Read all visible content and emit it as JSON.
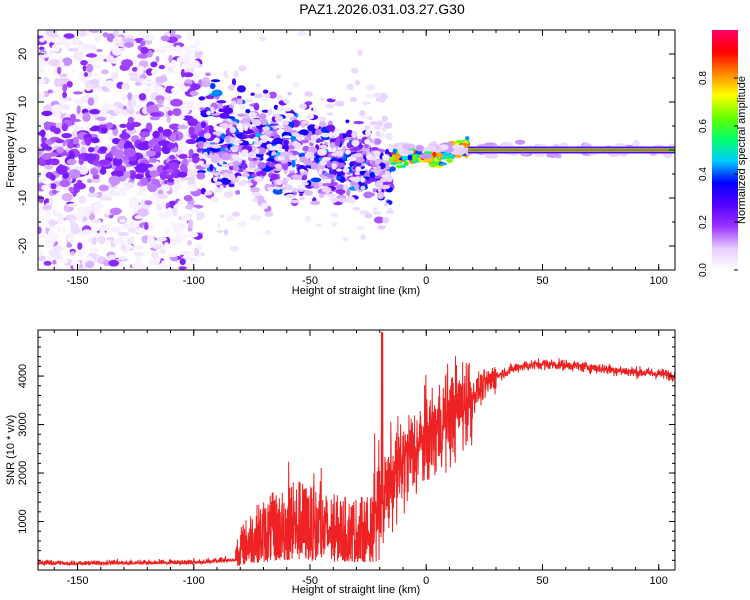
{
  "title": "PAZ1.2026.031.03.27.G30",
  "chart_data": [
    {
      "type": "heatmap",
      "name": "spectrogram",
      "xlabel": "Height of straight line (km)",
      "ylabel": "Frequency (Hz)",
      "xlim": [
        -167,
        107
      ],
      "ylim": [
        -25,
        25
      ],
      "xticks": [
        -150,
        -100,
        -50,
        0,
        50,
        100
      ],
      "xtick_labels": [
        "-150",
        "-100",
        "-50",
        "0",
        "50",
        "100"
      ],
      "yticks": [
        -20,
        -10,
        0,
        10,
        20
      ],
      "ytick_labels": [
        "-20",
        "-10",
        "0",
        "10",
        "20"
      ],
      "colorbar": {
        "label": "Normalized spectral amplitude",
        "range": [
          0,
          1
        ],
        "ticks": [
          0.0,
          0.2,
          0.4,
          0.6,
          0.8
        ],
        "tick_labels": [
          "0.0",
          "0.2",
          "0.4",
          "0.6",
          "0.8"
        ],
        "colormap": [
          "#ffffff",
          "#e6ccff",
          "#9933ff",
          "#5500ff",
          "#0000ff",
          "#00ccff",
          "#00ff66",
          "#66ff00",
          "#ffff00",
          "#ff8800",
          "#ff0000",
          "#ff0066"
        ]
      },
      "scatter_region": {
        "x": [
          -167,
          -97
        ],
        "freq_spread": 25,
        "amplitude": [
          0.02,
          0.22
        ]
      },
      "tracking_segment": {
        "x": [
          -97,
          -15
        ],
        "center_freq": [
          3,
          -4
        ],
        "amplitude": [
          0.1,
          0.45
        ]
      },
      "signal_track": {
        "x": [
          -15,
          18
        ],
        "center_freq": [
          -2,
          0
        ],
        "amplitude": [
          0.35,
          0.9
        ]
      },
      "line_segment": {
        "x": [
          18,
          107
        ],
        "freq": 0,
        "amplitude": 1.0
      }
    },
    {
      "type": "line",
      "name": "snr",
      "xlabel": "Height of straight line (km)",
      "ylabel": "SNR (10 * v/v)",
      "xlim": [
        -167,
        107
      ],
      "ylim": [
        0,
        4950
      ],
      "xticks": [
        -150,
        -100,
        -50,
        0,
        50,
        100
      ],
      "xtick_labels": [
        "-150",
        "-100",
        "-50",
        "0",
        "50",
        "100"
      ],
      "yticks": [
        1000,
        2000,
        3000,
        4000
      ],
      "ytick_labels": [
        "1000",
        "2000",
        "3000",
        "4000"
      ],
      "color": "#ee2222",
      "series": [
        {
          "name": "baseline",
          "x": [
            -167,
            -100,
            -85
          ],
          "values": [
            130,
            150,
            200
          ]
        },
        {
          "name": "noisy_rise",
          "x": [
            -82,
            -75,
            -65,
            -55,
            -45,
            -35,
            -25
          ],
          "values": [
            300,
            550,
            700,
            800,
            700,
            650,
            650
          ]
        },
        {
          "name": "spike",
          "x": [
            -19
          ],
          "values": [
            4900
          ]
        },
        {
          "name": "jump",
          "x": [
            -18,
            -10,
            0,
            10,
            20
          ],
          "values": [
            1600,
            2200,
            2700,
            3200,
            3600
          ]
        },
        {
          "name": "plateau",
          "x": [
            30,
            40,
            50,
            60,
            70,
            80,
            90,
            100,
            107
          ],
          "values": [
            4000,
            4200,
            4250,
            4230,
            4180,
            4130,
            4080,
            4050,
            4010
          ]
        }
      ]
    }
  ]
}
